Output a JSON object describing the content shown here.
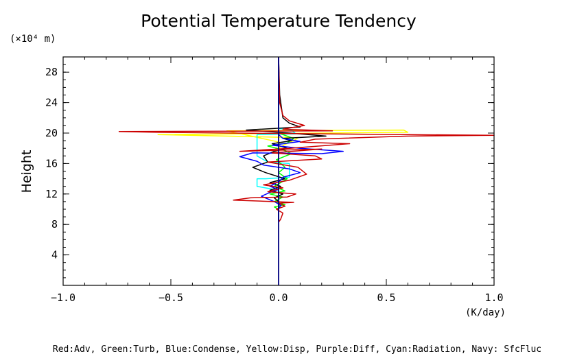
{
  "chart_data": {
    "type": "line",
    "title": "Potential Temperature Tendency",
    "xlabel": "(K/day)",
    "ylabel": "Height",
    "y_unit_label": "(×10⁴ m)",
    "xlim": [
      -1.0,
      1.0
    ],
    "ylim": [
      0,
      30
    ],
    "x_ticks": [
      -1.0,
      -0.5,
      0.0,
      0.5,
      1.0
    ],
    "x_tick_labels": [
      "−1.0",
      "−0.5",
      "0.0",
      "0.5",
      "1.0"
    ],
    "y_ticks": [
      4,
      8,
      12,
      16,
      20,
      24,
      28
    ],
    "y_tick_labels": [
      "4",
      "8",
      "12",
      "16",
      "20",
      "24",
      "28"
    ],
    "grid": false,
    "legend_text": "Red:Adv, Green:Turb, Blue:Condense, Yellow:Disp, Purple:Diff, Cyan:Radiation, Navy: SfcFluc",
    "series": [
      {
        "color": "#ffff00",
        "x": [
          0,
          0,
          0,
          0.004,
          -0.24,
          0.58,
          0.6,
          -0.56,
          0.09,
          0.07,
          0.03,
          0.0,
          0,
          0
        ],
        "y": [
          8.5,
          17.0,
          17.5,
          18.8,
          20.3,
          20.4,
          20.1,
          19.8,
          19.4,
          19.0,
          18.5,
          18.0,
          17.5,
          30
        ]
      },
      {
        "color": "#00ffff",
        "x": [
          0,
          0,
          -0.1,
          -0.1,
          -0.06,
          0.05,
          0.05,
          -0.05,
          -0.1,
          -0.1,
          0.08,
          0.06,
          0,
          0
        ],
        "y": [
          8.5,
          12.5,
          13.0,
          14.0,
          14.0,
          14.2,
          16.0,
          16.2,
          17.0,
          19.8,
          19.9,
          20.4,
          20.6,
          30
        ]
      },
      {
        "color": "#00ff00",
        "x": [
          0,
          0.0,
          -0.02,
          0.03,
          -0.02,
          0.02,
          -0.04,
          0.03,
          -0.02,
          0.04,
          0.0,
          0.03,
          -0.01,
          0.06,
          0.02,
          -0.05,
          0.04,
          0.07,
          0.0,
          0.0
        ],
        "y": [
          8.5,
          10.0,
          10.3,
          10.6,
          11.0,
          11.6,
          12.0,
          12.4,
          13.0,
          14.0,
          14.8,
          15.5,
          16.5,
          17.3,
          17.8,
          18.3,
          18.7,
          19.3,
          20.0,
          30
        ]
      },
      {
        "color": "#000000",
        "x": [
          0,
          0,
          -0.02,
          0.02,
          -0.04,
          0.01,
          -0.04,
          0.03,
          -0.06,
          -0.12,
          -0.05,
          -0.07,
          -0.02,
          0.04,
          -0.03,
          0.06,
          0.02,
          0.22,
          0.05,
          -0.15,
          0.1,
          0.05,
          0.02,
          0.005,
          0
        ],
        "y": [
          8.5,
          11.0,
          11.5,
          12.0,
          12.5,
          13.0,
          13.5,
          14.0,
          14.8,
          15.5,
          16.2,
          17.0,
          17.6,
          18.0,
          18.6,
          19.0,
          19.3,
          19.6,
          20.0,
          20.4,
          20.8,
          21.3,
          22.0,
          25.0,
          30
        ]
      },
      {
        "color": "#0000ff",
        "x": [
          0,
          0,
          0.01,
          -0.02,
          -0.08,
          -0.04,
          0.0,
          -0.04,
          0.01,
          0.02,
          0.1,
          0.05,
          -0.07,
          -0.1,
          -0.18,
          -0.12,
          0.2,
          0.3,
          0.1,
          -0.03,
          0.1,
          0.02,
          0.0,
          0,
          0
        ],
        "y": [
          8.5,
          10.0,
          10.5,
          11.0,
          11.7,
          12.2,
          12.6,
          13.0,
          13.8,
          14.2,
          14.8,
          15.3,
          15.8,
          16.3,
          16.9,
          17.4,
          17.3,
          17.6,
          18.0,
          18.4,
          18.9,
          19.3,
          19.8,
          20.2,
          30
        ]
      },
      {
        "color": "#cc0000",
        "x": [
          0,
          0.01,
          0.02,
          -0.01,
          0.03,
          0.0,
          0.07,
          -0.21,
          -0.13,
          0.04,
          0.08,
          -0.05,
          0.02,
          -0.07,
          0.05,
          0.13,
          0.09,
          -0.05,
          0.2,
          0.17,
          -0.03,
          0.2,
          -0.18,
          0.05,
          0.33,
          0.1,
          0.17,
          0.6,
          1.0,
          0.6,
          -0.2,
          -0.56,
          -0.74,
          0.25,
          0.02,
          0.12,
          0.05,
          0.02,
          0.005,
          0
        ],
        "y": [
          8.3,
          8.7,
          9.5,
          10.0,
          10.4,
          10.8,
          10.9,
          11.2,
          11.5,
          11.6,
          12.0,
          12.3,
          12.8,
          13.2,
          13.8,
          14.6,
          15.5,
          16.2,
          16.6,
          17.0,
          17.4,
          17.9,
          17.6,
          18.0,
          18.6,
          18.8,
          19.2,
          19.6,
          19.7,
          19.8,
          20.0,
          20.1,
          20.2,
          20.3,
          20.5,
          21.0,
          21.6,
          22.3,
          24.0,
          30
        ]
      }
    ]
  }
}
